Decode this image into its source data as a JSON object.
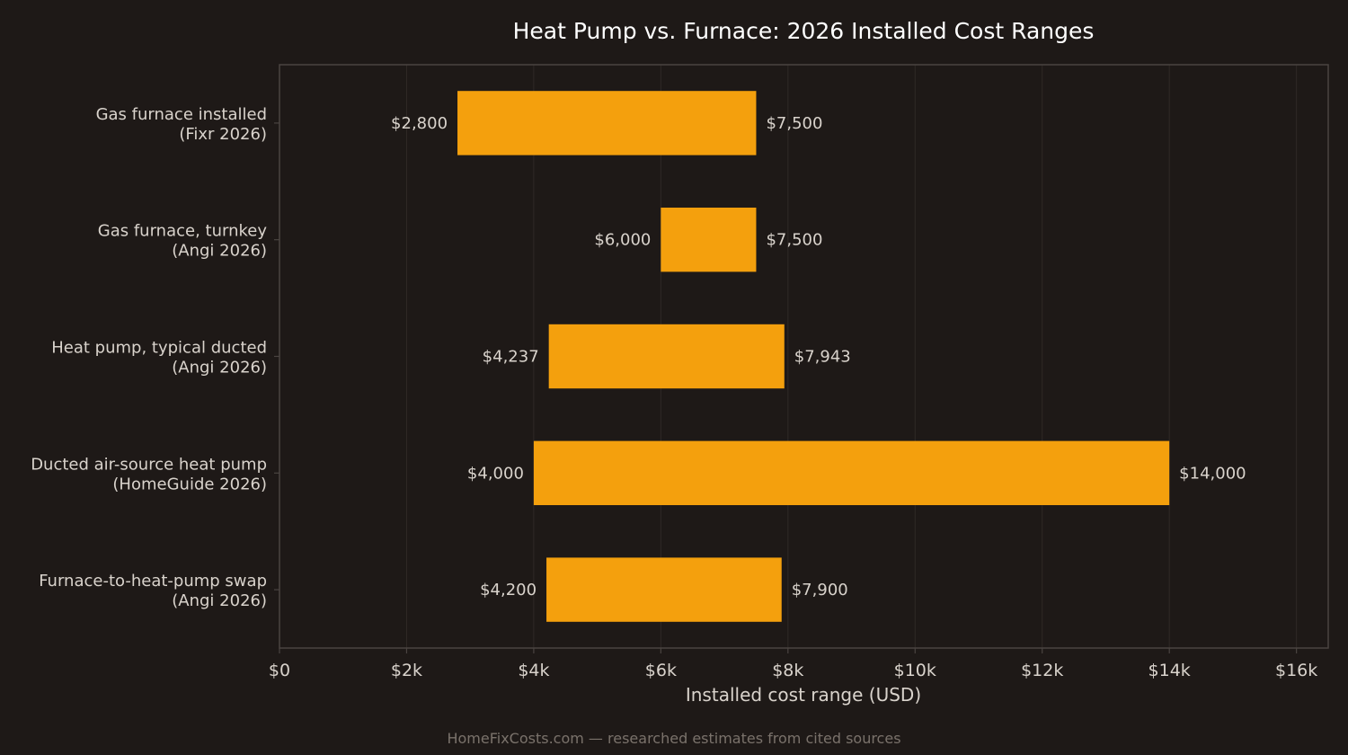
{
  "chart_data": {
    "type": "bar",
    "orientation": "horizontal",
    "title": "Heat Pump vs. Furnace: 2026 Installed Cost Ranges",
    "xlabel": "Installed cost range (USD)",
    "xlim": [
      0,
      16500
    ],
    "xticks": [
      0,
      2000,
      4000,
      6000,
      8000,
      10000,
      12000,
      14000,
      16000
    ],
    "xtick_labels": [
      "$0",
      "$2k",
      "$4k",
      "$6k",
      "$8k",
      "$10k",
      "$12k",
      "$14k",
      "$16k"
    ],
    "grid": "vertical",
    "bar_color": "#f4a00d",
    "categories": [
      {
        "line1": "Gas furnace installed",
        "line2": "(Fixr 2026)",
        "low": 2800,
        "high": 7500,
        "low_label": "$2,800",
        "high_label": "$7,500"
      },
      {
        "line1": "Gas furnace, turnkey",
        "line2": "(Angi 2026)",
        "low": 6000,
        "high": 7500,
        "low_label": "$6,000",
        "high_label": "$7,500"
      },
      {
        "line1": "Heat pump, typical ducted",
        "line2": "(Angi 2026)",
        "low": 4237,
        "high": 7943,
        "low_label": "$4,237",
        "high_label": "$7,943"
      },
      {
        "line1": "Ducted air-source heat pump",
        "line2": "(HomeGuide 2026)",
        "low": 4000,
        "high": 14000,
        "low_label": "$4,000",
        "high_label": "$14,000"
      },
      {
        "line1": "Furnace-to-heat-pump swap",
        "line2": "(Angi 2026)",
        "low": 4200,
        "high": 7900,
        "low_label": "$4,200",
        "high_label": "$7,900"
      }
    ]
  },
  "footer": "HomeFixCosts.com — researched estimates from cited sources"
}
